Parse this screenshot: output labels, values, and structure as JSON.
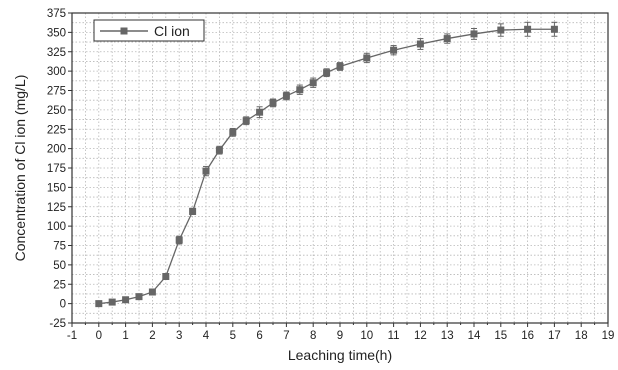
{
  "chart_data": {
    "type": "line",
    "title": "",
    "xlabel": "Leaching time(h)",
    "ylabel": "Concentration of Cl ion (mg/L)",
    "xlim": [
      -1,
      19
    ],
    "ylim": [
      -25,
      375
    ],
    "x_ticks": [
      -1,
      0,
      1,
      2,
      3,
      4,
      5,
      6,
      7,
      8,
      9,
      10,
      11,
      12,
      13,
      14,
      15,
      16,
      17,
      18,
      19
    ],
    "y_ticks": [
      -25,
      0,
      25,
      50,
      75,
      100,
      125,
      150,
      175,
      200,
      225,
      250,
      275,
      300,
      325,
      350,
      375
    ],
    "grid": true,
    "grid_style": "dotted",
    "legend_position": "top-left",
    "series": [
      {
        "name": "Cl ion",
        "color": "#666666",
        "marker": "square",
        "x": [
          0,
          0.5,
          1,
          1.5,
          2,
          2.5,
          3,
          3.5,
          4,
          4.5,
          5,
          5.5,
          6,
          6.5,
          7,
          7.5,
          8,
          8.5,
          9,
          10,
          11,
          12,
          13,
          14,
          15,
          16,
          17
        ],
        "y": [
          0,
          2,
          5,
          9,
          15,
          35,
          82,
          119,
          171,
          198,
          221,
          236,
          247,
          259,
          268,
          276,
          285,
          298,
          306,
          317,
          327,
          335,
          342,
          348,
          353,
          354,
          354
        ],
        "error": [
          2,
          2,
          2,
          2,
          3,
          3,
          5,
          4,
          6,
          5,
          5,
          5,
          7,
          5,
          5,
          6,
          6,
          5,
          5,
          6,
          6,
          7,
          6,
          7,
          8,
          9,
          9
        ]
      }
    ]
  }
}
